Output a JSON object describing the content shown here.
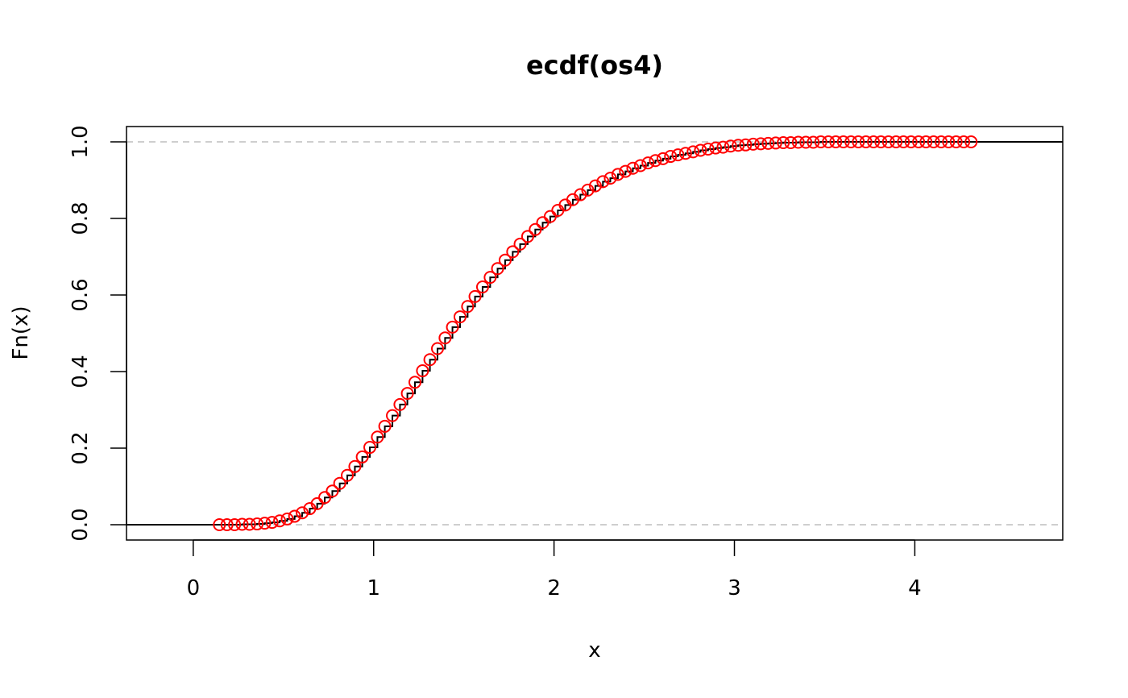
{
  "chart_data": {
    "type": "line",
    "title": "ecdf(os4)",
    "xlabel": "x",
    "ylabel": "Fn(x)",
    "xlim": [
      -0.37,
      4.82
    ],
    "ylim": [
      -0.04,
      1.04
    ],
    "xticks": [
      0,
      1,
      2,
      3,
      4
    ],
    "yticks": [
      0.0,
      0.2,
      0.4,
      0.6,
      0.8,
      1.0
    ],
    "xtick_labels": [
      "0",
      "1",
      "2",
      "3",
      "4"
    ],
    "ytick_labels": [
      "0.0",
      "0.2",
      "0.4",
      "0.6",
      "0.8",
      "1.0"
    ],
    "reference_lines_y": [
      0,
      1
    ],
    "grid": false,
    "legend": "none",
    "colors": {
      "points": "#ff0000",
      "line": "#000000",
      "reference": "#bebebe"
    },
    "series": [
      {
        "x": [
          0.145,
          0.187,
          0.229,
          0.271,
          0.312,
          0.354,
          0.396,
          0.437,
          0.479,
          0.521,
          0.562,
          0.604,
          0.646,
          0.687,
          0.729,
          0.771,
          0.812,
          0.854,
          0.896,
          0.937,
          0.979,
          1.021,
          1.062,
          1.104,
          1.146,
          1.187,
          1.229,
          1.271,
          1.312,
          1.354,
          1.396,
          1.437,
          1.479,
          1.521,
          1.562,
          1.604,
          1.646,
          1.687,
          1.729,
          1.771,
          1.812,
          1.854,
          1.896,
          1.937,
          1.979,
          2.021,
          2.062,
          2.104,
          2.146,
          2.187,
          2.229,
          2.271,
          2.312,
          2.354,
          2.396,
          2.437,
          2.479,
          2.521,
          2.562,
          2.604,
          2.646,
          2.687,
          2.729,
          2.771,
          2.812,
          2.854,
          2.896,
          2.937,
          2.979,
          3.021,
          3.062,
          3.104,
          3.146,
          3.187,
          3.229,
          3.271,
          3.312,
          3.354,
          3.396,
          3.437,
          3.479,
          3.521,
          3.562,
          3.604,
          3.646,
          3.687,
          3.729,
          3.771,
          3.812,
          3.854,
          3.896,
          3.937,
          3.979,
          4.021,
          4.062,
          4.104,
          4.146,
          4.187,
          4.229,
          4.271,
          4.312
        ],
        "y": [
          0.0,
          0.0,
          0.0,
          0.001,
          0.001,
          0.002,
          0.004,
          0.006,
          0.01,
          0.015,
          0.022,
          0.031,
          0.042,
          0.055,
          0.071,
          0.088,
          0.108,
          0.129,
          0.152,
          0.177,
          0.202,
          0.229,
          0.257,
          0.285,
          0.314,
          0.343,
          0.372,
          0.402,
          0.431,
          0.46,
          0.488,
          0.516,
          0.543,
          0.57,
          0.596,
          0.621,
          0.646,
          0.669,
          0.691,
          0.713,
          0.733,
          0.753,
          0.771,
          0.789,
          0.805,
          0.821,
          0.835,
          0.849,
          0.862,
          0.874,
          0.885,
          0.896,
          0.905,
          0.915,
          0.923,
          0.931,
          0.938,
          0.945,
          0.951,
          0.956,
          0.962,
          0.966,
          0.97,
          0.974,
          0.978,
          0.981,
          0.984,
          0.986,
          0.989,
          0.991,
          0.992,
          0.994,
          0.995,
          0.996,
          0.997,
          0.998,
          0.998,
          0.999,
          0.999,
          0.999,
          1.0,
          1.0,
          1.0,
          1.0,
          1.0,
          1.0,
          1.0,
          1.0,
          1.0,
          1.0,
          1.0,
          1.0,
          1.0,
          1.0,
          1.0,
          1.0,
          1.0,
          1.0,
          1.0,
          1.0,
          1.0
        ]
      }
    ]
  }
}
